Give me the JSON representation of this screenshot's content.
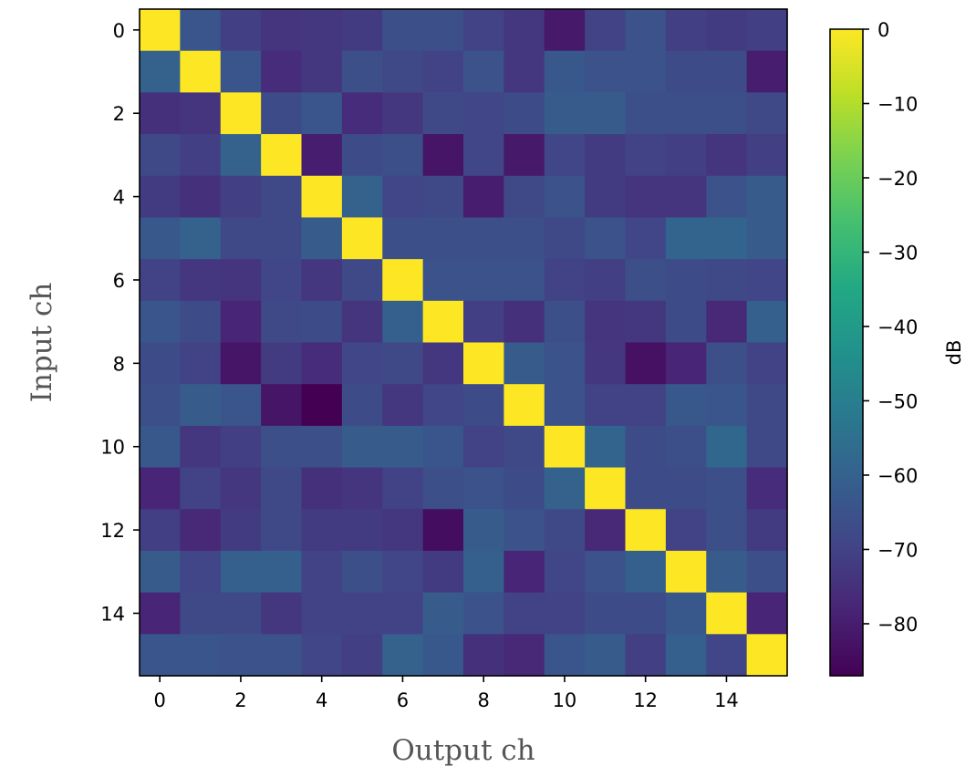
{
  "chart_data": {
    "type": "heatmap",
    "xlabel": "Output ch",
    "ylabel": "Input ch",
    "colorbar_label": "dB",
    "colormap": "viridis",
    "vmin": -87,
    "vmax": 0,
    "x_ticks": [
      0,
      2,
      4,
      6,
      8,
      10,
      12,
      14
    ],
    "y_ticks": [
      0,
      2,
      4,
      6,
      8,
      10,
      12,
      14
    ],
    "colorbar_ticks": [
      0,
      -10,
      -20,
      -30,
      -40,
      -50,
      -60,
      -70,
      -80
    ],
    "colorbar_tick_labels": [
      "0",
      "−10",
      "−20",
      "−30",
      "−40",
      "−50",
      "−60",
      "−70",
      "−80"
    ],
    "x_tick_labels": [
      "0",
      "2",
      "4",
      "6",
      "8",
      "10",
      "12",
      "14"
    ],
    "y_tick_labels": [
      "0",
      "2",
      "4",
      "6",
      "8",
      "10",
      "12",
      "14"
    ],
    "values": [
      [
        0,
        -64,
        -71,
        -74,
        -73,
        -72,
        -66,
        -66,
        -70,
        -73,
        -81,
        -70,
        -65,
        -71,
        -72,
        -71
      ],
      [
        -60,
        0,
        -64,
        -76,
        -73,
        -66,
        -68,
        -70,
        -65,
        -73,
        -63,
        -65,
        -65,
        -67,
        -67,
        -80
      ],
      [
        -75,
        -74,
        0,
        -67,
        -64,
        -76,
        -73,
        -68,
        -69,
        -67,
        -62,
        -62,
        -66,
        -66,
        -66,
        -68
      ],
      [
        -68,
        -71,
        -60,
        0,
        -80,
        -67,
        -66,
        -82,
        -69,
        -81,
        -69,
        -72,
        -70,
        -71,
        -74,
        -71
      ],
      [
        -72,
        -75,
        -71,
        -68,
        0,
        -60,
        -69,
        -68,
        -80,
        -68,
        -65,
        -72,
        -74,
        -74,
        -65,
        -62
      ],
      [
        -63,
        -60,
        -68,
        -68,
        -62,
        0,
        -66,
        -66,
        -66,
        -66,
        -68,
        -65,
        -69,
        -59,
        -59,
        -62
      ],
      [
        -70,
        -73,
        -74,
        -69,
        -73,
        -68,
        0,
        -65,
        -65,
        -65,
        -70,
        -71,
        -66,
        -67,
        -68,
        -69
      ],
      [
        -64,
        -67,
        -78,
        -68,
        -67,
        -74,
        -61,
        0,
        -71,
        -75,
        -66,
        -74,
        -73,
        -67,
        -77,
        -61
      ],
      [
        -67,
        -70,
        -82,
        -72,
        -76,
        -69,
        -68,
        -73,
        0,
        -62,
        -65,
        -73,
        -83,
        -78,
        -66,
        -70
      ],
      [
        -66,
        -62,
        -64,
        -82,
        -87,
        -67,
        -73,
        -69,
        -67,
        0,
        -65,
        -70,
        -70,
        -63,
        -64,
        -68
      ],
      [
        -63,
        -73,
        -71,
        -66,
        -66,
        -62,
        -62,
        -64,
        -70,
        -68,
        0,
        -59,
        -67,
        -66,
        -58,
        -68
      ],
      [
        -78,
        -70,
        -73,
        -68,
        -75,
        -74,
        -70,
        -66,
        -65,
        -67,
        -60,
        0,
        -67,
        -67,
        -66,
        -76
      ],
      [
        -71,
        -77,
        -72,
        -68,
        -72,
        -72,
        -73,
        -84,
        -62,
        -65,
        -68,
        -77,
        0,
        -70,
        -66,
        -72
      ],
      [
        -62,
        -69,
        -61,
        -61,
        -70,
        -66,
        -69,
        -72,
        -61,
        -78,
        -69,
        -65,
        -61,
        0,
        -62,
        -66
      ],
      [
        -78,
        -68,
        -68,
        -73,
        -70,
        -70,
        -70,
        -62,
        -65,
        -70,
        -70,
        -67,
        -67,
        -63,
        0,
        -78
      ],
      [
        -64,
        -64,
        -65,
        -65,
        -69,
        -71,
        -60,
        -63,
        -75,
        -77,
        -64,
        -62,
        -71,
        -61,
        -69,
        0
      ]
    ]
  }
}
